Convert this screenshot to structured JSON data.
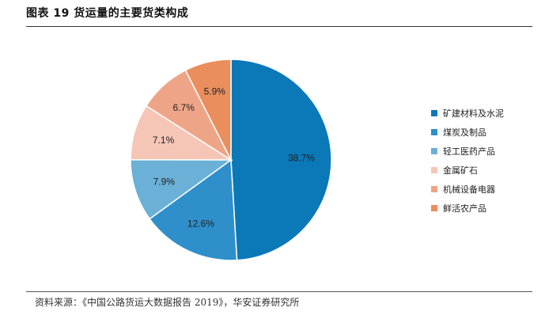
{
  "figure": {
    "title": "图表 19 货运量的主要货类构成",
    "source": "资料来源：《中国公路货运大数据报告 2019》，华安证券研究所"
  },
  "chart_data": {
    "type": "pie",
    "title": "",
    "start_angle_deg": 0,
    "direction": "clockwise",
    "legend_position": "right",
    "slices": [
      {
        "label": "矿建材料及水泥",
        "value": 38.7,
        "label_text": "38.7%",
        "color": "#0B78B8",
        "text_color": "#222222"
      },
      {
        "label": "煤炭及制品",
        "value": 12.6,
        "label_text": "12.6%",
        "color": "#2E8FCB",
        "text_color": "#222222"
      },
      {
        "label": "轻工医药产品",
        "value": 7.9,
        "label_text": "7.9%",
        "color": "#6BB0D6",
        "text_color": "#222222"
      },
      {
        "label": "金属矿石",
        "value": 7.1,
        "label_text": "7.1%",
        "color": "#F5C6B6",
        "text_color": "#222222"
      },
      {
        "label": "机械设备电器",
        "value": 6.7,
        "label_text": "6.7%",
        "color": "#EEA587",
        "text_color": "#222222"
      },
      {
        "label": "鲜活农产品",
        "value": 5.9,
        "label_text": "5.9%",
        "color": "#EA8E5D",
        "text_color": "#222222"
      }
    ]
  }
}
